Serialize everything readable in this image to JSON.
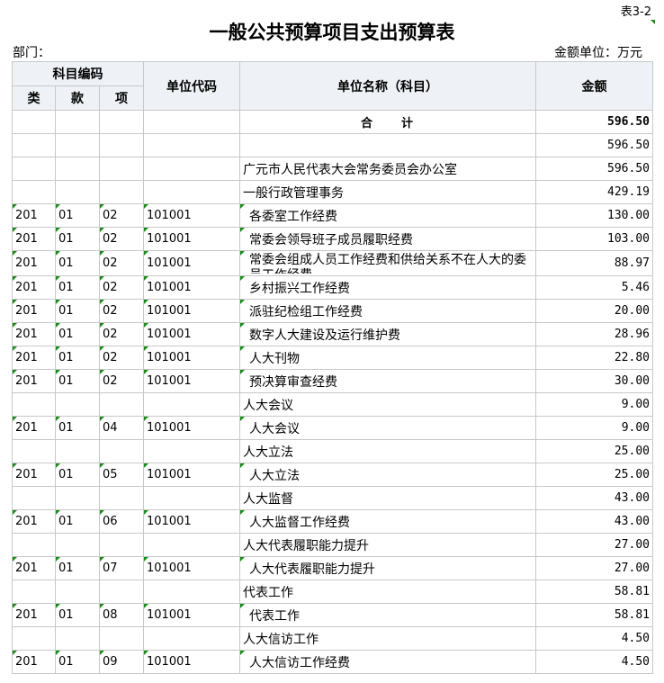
{
  "table_no": "表3-2",
  "title": "一般公共预算项目支出预算表",
  "dept_label": "部门：",
  "unit_label": "金额单位：万元",
  "headers": {
    "code_group": "科目编码",
    "lei": "类",
    "kuan": "款",
    "xiang": "项",
    "unit_code": "单位代码",
    "unit_name": "单位名称（科目）",
    "amount": "金额"
  },
  "total": {
    "label": "合　　计",
    "amount": "596.50"
  },
  "rows": [
    {
      "lei": "",
      "kuan": "",
      "xiang": "",
      "code": "",
      "name": "",
      "amount": "596.50",
      "indent": false
    },
    {
      "lei": "",
      "kuan": "",
      "xiang": "",
      "code": "",
      "name": "广元市人民代表大会常务委员会办公室",
      "amount": "596.50",
      "indent": false
    },
    {
      "lei": "",
      "kuan": "",
      "xiang": "",
      "code": "",
      "name": "一般行政管理事务",
      "amount": "429.19",
      "indent": false
    },
    {
      "lei": "201",
      "kuan": "01",
      "xiang": "02",
      "code": "101001",
      "name": "各委室工作经费",
      "amount": "130.00",
      "indent": true
    },
    {
      "lei": "201",
      "kuan": "01",
      "xiang": "02",
      "code": "101001",
      "name": "常委会领导班子成员履职经费",
      "amount": "103.00",
      "indent": true
    },
    {
      "lei": "201",
      "kuan": "01",
      "xiang": "02",
      "code": "101001",
      "name": "常委会组成人员工作经费和供给关系不在人大的委员工作经费",
      "amount": "88.97",
      "indent": true,
      "wrap": true
    },
    {
      "lei": "201",
      "kuan": "01",
      "xiang": "02",
      "code": "101001",
      "name": "乡村振兴工作经费",
      "amount": "5.46",
      "indent": true
    },
    {
      "lei": "201",
      "kuan": "01",
      "xiang": "02",
      "code": "101001",
      "name": "派驻纪检组工作经费",
      "amount": "20.00",
      "indent": true
    },
    {
      "lei": "201",
      "kuan": "01",
      "xiang": "02",
      "code": "101001",
      "name": "数字人大建设及运行维护费",
      "amount": "28.96",
      "indent": true
    },
    {
      "lei": "201",
      "kuan": "01",
      "xiang": "02",
      "code": "101001",
      "name": "人大刊物",
      "amount": "22.80",
      "indent": true
    },
    {
      "lei": "201",
      "kuan": "01",
      "xiang": "02",
      "code": "101001",
      "name": "预决算审查经费",
      "amount": "30.00",
      "indent": true
    },
    {
      "lei": "",
      "kuan": "",
      "xiang": "",
      "code": "",
      "name": "人大会议",
      "amount": "9.00",
      "indent": false
    },
    {
      "lei": "201",
      "kuan": "01",
      "xiang": "04",
      "code": "101001",
      "name": "人大会议",
      "amount": "9.00",
      "indent": true
    },
    {
      "lei": "",
      "kuan": "",
      "xiang": "",
      "code": "",
      "name": "人大立法",
      "amount": "25.00",
      "indent": false
    },
    {
      "lei": "201",
      "kuan": "01",
      "xiang": "05",
      "code": "101001",
      "name": "人大立法",
      "amount": "25.00",
      "indent": true
    },
    {
      "lei": "",
      "kuan": "",
      "xiang": "",
      "code": "",
      "name": "人大监督",
      "amount": "43.00",
      "indent": false
    },
    {
      "lei": "201",
      "kuan": "01",
      "xiang": "06",
      "code": "101001",
      "name": "人大监督工作经费",
      "amount": "43.00",
      "indent": true
    },
    {
      "lei": "",
      "kuan": "",
      "xiang": "",
      "code": "",
      "name": "人大代表履职能力提升",
      "amount": "27.00",
      "indent": false
    },
    {
      "lei": "201",
      "kuan": "01",
      "xiang": "07",
      "code": "101001",
      "name": "人大代表履职能力提升",
      "amount": "27.00",
      "indent": true
    },
    {
      "lei": "",
      "kuan": "",
      "xiang": "",
      "code": "",
      "name": "代表工作",
      "amount": "58.81",
      "indent": false
    },
    {
      "lei": "201",
      "kuan": "01",
      "xiang": "08",
      "code": "101001",
      "name": "代表工作",
      "amount": "58.81",
      "indent": true
    },
    {
      "lei": "",
      "kuan": "",
      "xiang": "",
      "code": "",
      "name": "人大信访工作",
      "amount": "4.50",
      "indent": false
    },
    {
      "lei": "201",
      "kuan": "01",
      "xiang": "09",
      "code": "101001",
      "name": "人大信访工作经费",
      "amount": "4.50",
      "indent": true
    }
  ]
}
